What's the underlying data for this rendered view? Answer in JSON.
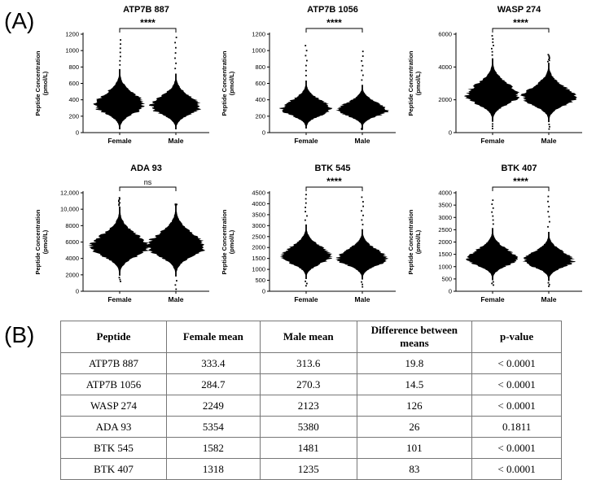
{
  "colors": {
    "ink": "#000000",
    "background": "#ffffff"
  },
  "panels": {
    "a_label": "(A)",
    "b_label": "(B)"
  },
  "chart_data": [
    {
      "type": "violin",
      "title": "ATP7B 887",
      "ylabel_line1": "Peptide Concentration",
      "ylabel_line2": "(pmol/L)",
      "categories": [
        "Female",
        "Male"
      ],
      "significance": "****",
      "ylim": [
        0,
        1200
      ],
      "yticks": [
        0,
        200,
        400,
        600,
        800,
        1000,
        1200
      ],
      "ytick_labels": [
        "0",
        "200",
        "400",
        "600",
        "800",
        "1000",
        "1200"
      ],
      "violins": [
        {
          "category": "Female",
          "mean": 333.4,
          "center": 333,
          "spread": 120,
          "min": 40,
          "max": 1130,
          "maxw": 30
        },
        {
          "category": "Male",
          "mean": 313.6,
          "center": 314,
          "spread": 110,
          "min": 40,
          "max": 1160,
          "maxw": 30
        }
      ]
    },
    {
      "type": "violin",
      "title": "ATP7B 1056",
      "ylabel_line1": "Peptide Concentration",
      "ylabel_line2": "(pmol/L)",
      "categories": [
        "Female",
        "Male"
      ],
      "significance": "****",
      "ylim": [
        0,
        1200
      ],
      "yticks": [
        0,
        200,
        400,
        600,
        800,
        1000,
        1200
      ],
      "ytick_labels": [
        "0",
        "200",
        "400",
        "600",
        "800",
        "1000",
        "1200"
      ],
      "violins": [
        {
          "category": "Female",
          "mean": 284.7,
          "center": 285,
          "spread": 95,
          "min": 50,
          "max": 1060,
          "maxw": 30
        },
        {
          "category": "Male",
          "mean": 270.3,
          "center": 270,
          "spread": 85,
          "min": 40,
          "max": 990,
          "maxw": 30
        }
      ]
    },
    {
      "type": "violin",
      "title": "WASP 274",
      "ylabel_line1": "Peptide Concentration",
      "ylabel_line2": "(pmol/L)",
      "categories": [
        "Female",
        "Male"
      ],
      "significance": "****",
      "ylim": [
        0,
        6000
      ],
      "yticks": [
        0,
        2000,
        4000,
        6000
      ],
      "ytick_labels": [
        "0",
        "2000",
        "4000",
        "6000"
      ],
      "violins": [
        {
          "category": "Female",
          "mean": 2249,
          "center": 2249,
          "spread": 620,
          "min": 250,
          "max": 5900,
          "maxw": 32
        },
        {
          "category": "Male",
          "mean": 2123,
          "center": 2123,
          "spread": 580,
          "min": 220,
          "max": 4750,
          "maxw": 32
        }
      ]
    },
    {
      "type": "violin",
      "title": "ADA 93",
      "ylabel_line1": "Peptide  Concentration",
      "ylabel_line2": "(pmol/L)",
      "categories": [
        "Female",
        "Male"
      ],
      "significance": "ns",
      "ylim": [
        0,
        12000
      ],
      "yticks": [
        0,
        2000,
        4000,
        6000,
        8000,
        10000,
        12000
      ],
      "ytick_labels": [
        "0",
        "2000",
        "4000",
        "6000",
        "8000",
        "10,000",
        "12,000"
      ],
      "violins": [
        {
          "category": "Female",
          "mean": 5354,
          "center": 5354,
          "spread": 1350,
          "min": 1200,
          "max": 11400,
          "maxw": 35
        },
        {
          "category": "Male",
          "mean": 5380,
          "center": 5380,
          "spread": 1400,
          "min": 250,
          "max": 10600,
          "maxw": 35
        }
      ]
    },
    {
      "type": "violin",
      "title": "BTK 545",
      "ylabel_line1": "Peptide Concentration",
      "ylabel_line2": "(pmol/L)",
      "categories": [
        "Female",
        "Male"
      ],
      "significance": "****",
      "ylim": [
        0,
        4500
      ],
      "yticks": [
        0,
        500,
        1000,
        1500,
        2000,
        2500,
        3000,
        3500,
        4000,
        4500
      ],
      "ytick_labels": [
        "0",
        "500",
        "1000",
        "1500",
        "2000",
        "2500",
        "3000",
        "3500",
        "4000",
        "4500"
      ],
      "violins": [
        {
          "category": "Female",
          "mean": 1582,
          "center": 1582,
          "spread": 400,
          "min": 250,
          "max": 4420,
          "maxw": 30
        },
        {
          "category": "Male",
          "mean": 1481,
          "center": 1481,
          "spread": 370,
          "min": 200,
          "max": 4300,
          "maxw": 30
        }
      ]
    },
    {
      "type": "violin",
      "title": "BTK 407",
      "ylabel_line1": "Peptide Concentration",
      "ylabel_line2": "(pmol/L)",
      "categories": [
        "Female",
        "Male"
      ],
      "significance": "****",
      "ylim": [
        0,
        4000
      ],
      "yticks": [
        0,
        500,
        1000,
        1500,
        2000,
        2500,
        3000,
        3500,
        4000
      ],
      "ytick_labels": [
        "0",
        "500",
        "1000",
        "1500",
        "2000",
        "2500",
        "3000",
        "3500",
        "4000"
      ],
      "violins": [
        {
          "category": "Female",
          "mean": 1318,
          "center": 1318,
          "spread": 340,
          "min": 250,
          "max": 3700,
          "maxw": 30
        },
        {
          "category": "Male",
          "mean": 1235,
          "center": 1235,
          "spread": 320,
          "min": 200,
          "max": 3850,
          "maxw": 30
        }
      ]
    }
  ],
  "table": {
    "headers": [
      "Peptide",
      "Female mean",
      "Male mean",
      "Difference between means",
      "p-value"
    ],
    "rows": [
      [
        "ATP7B 887",
        "333.4",
        "313.6",
        "19.8",
        "< 0.0001"
      ],
      [
        "ATP7B 1056",
        "284.7",
        "270.3",
        "14.5",
        "< 0.0001"
      ],
      [
        "WASP 274",
        "2249",
        "2123",
        "126",
        "< 0.0001"
      ],
      [
        "ADA 93",
        "5354",
        "5380",
        "26",
        "0.1811"
      ],
      [
        "BTK 545",
        "1582",
        "1481",
        "101",
        "< 0.0001"
      ],
      [
        "BTK 407",
        "1318",
        "1235",
        "83",
        "< 0.0001"
      ]
    ]
  }
}
